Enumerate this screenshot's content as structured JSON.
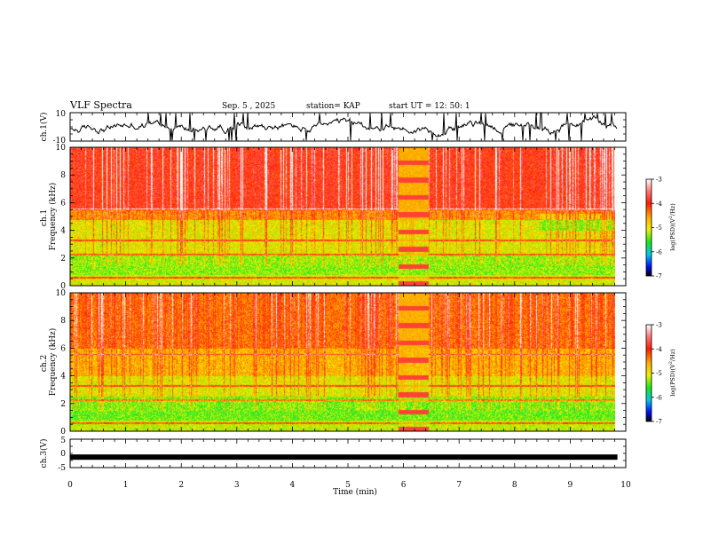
{
  "header": {
    "title": "VLF Spectra",
    "date": "Sep. 5  , 2025",
    "station": "station= KAP",
    "start": "start  UT  =   12: 50: 1"
  },
  "chart_data": [
    {
      "type": "line",
      "name": "ch1-waveform",
      "ylabel": "ch.1(V)",
      "ylim": [
        -10,
        10
      ],
      "y_tick_labels": [
        "10",
        "-10"
      ],
      "xlim": [
        0,
        10
      ]
    },
    {
      "type": "heatmap",
      "name": "ch1-spectrogram",
      "ylabel": "ch.1\nFrequency  (kHz)",
      "ylim": [
        0,
        10
      ],
      "y_tick_labels": [
        "0",
        "2",
        "4",
        "6",
        "8",
        "10"
      ],
      "xlim": [
        0,
        10
      ],
      "data_end_min": 9.85,
      "colorbar": {
        "range": [
          -7,
          -3
        ],
        "tick_labels": [
          "-3",
          "-4",
          "-5",
          "-6",
          "-7"
        ],
        "label": "log(PSD)(V²/Hz)"
      },
      "event_band_min": [
        5.9,
        6.45
      ]
    },
    {
      "type": "heatmap",
      "name": "ch2-spectrogram",
      "ylabel": "ch.2\nFrequency  (kHz)",
      "ylim": [
        0,
        10
      ],
      "y_tick_labels": [
        "0",
        "2",
        "4",
        "6",
        "8",
        "10"
      ],
      "xlim": [
        0,
        10
      ],
      "data_end_min": 9.85,
      "colorbar": {
        "range": [
          -7,
          -3
        ],
        "tick_labels": [
          "-3",
          "-4",
          "-5",
          "-6",
          "-7"
        ],
        "label": "log(PSD)(V²/Hz)"
      },
      "event_band_min": [
        5.9,
        6.45
      ]
    },
    {
      "type": "line",
      "name": "ch3-waveform",
      "ylabel": "ch.3(V)",
      "ylim": [
        -5,
        5
      ],
      "y_tick_labels": [
        "5",
        "0",
        "-5"
      ],
      "xlim": [
        0,
        10
      ],
      "level": -1.3
    }
  ],
  "xaxis": {
    "label": "Time  (min)",
    "tick_labels": [
      "0",
      "1",
      "2",
      "3",
      "4",
      "5",
      "6",
      "7",
      "8",
      "9",
      "10"
    ]
  },
  "colors": {
    "red": "#ff2a10",
    "orange": "#ff8a00",
    "yellow": "#f2f200",
    "green": "#1ee81e",
    "cyan": "#00d8e0",
    "blue": "#0018ff",
    "black": "#000000"
  }
}
